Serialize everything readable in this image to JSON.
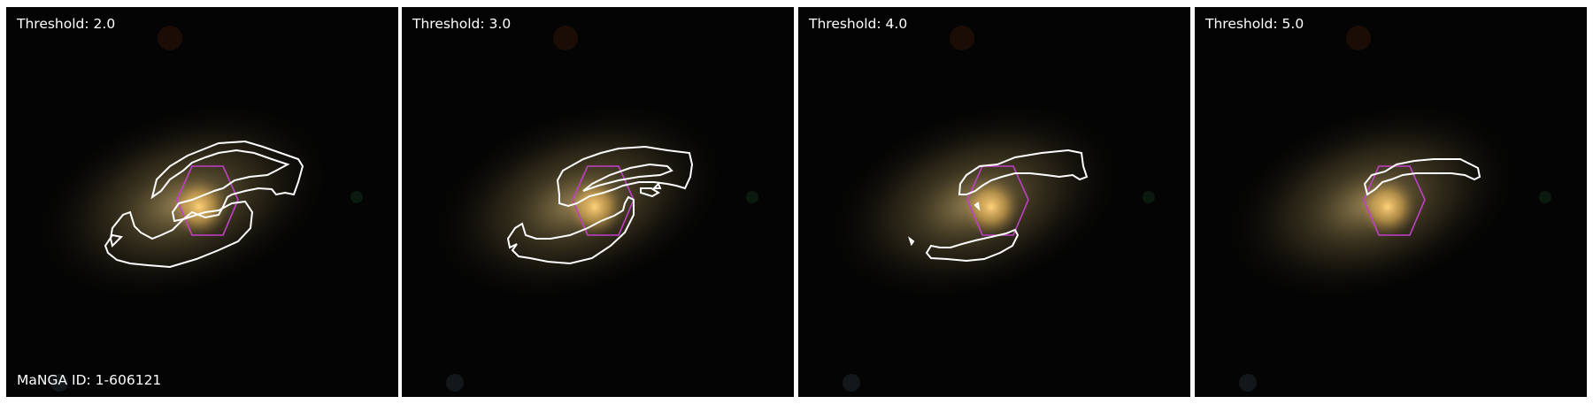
{
  "figure": {
    "manga_id_label": "MaNGA ID: 1-606121",
    "colors": {
      "contour": "#ffffff",
      "hexagon": "#c040c8",
      "background": "#040404",
      "galaxy_core": "#f5c060",
      "galaxy_disk": "#8c7a50"
    },
    "panels": [
      {
        "threshold_label": "Threshold: 2.0"
      },
      {
        "threshold_label": "Threshold: 3.0"
      },
      {
        "threshold_label": "Threshold: 4.0"
      },
      {
        "threshold_label": "Threshold: 5.0"
      }
    ]
  }
}
